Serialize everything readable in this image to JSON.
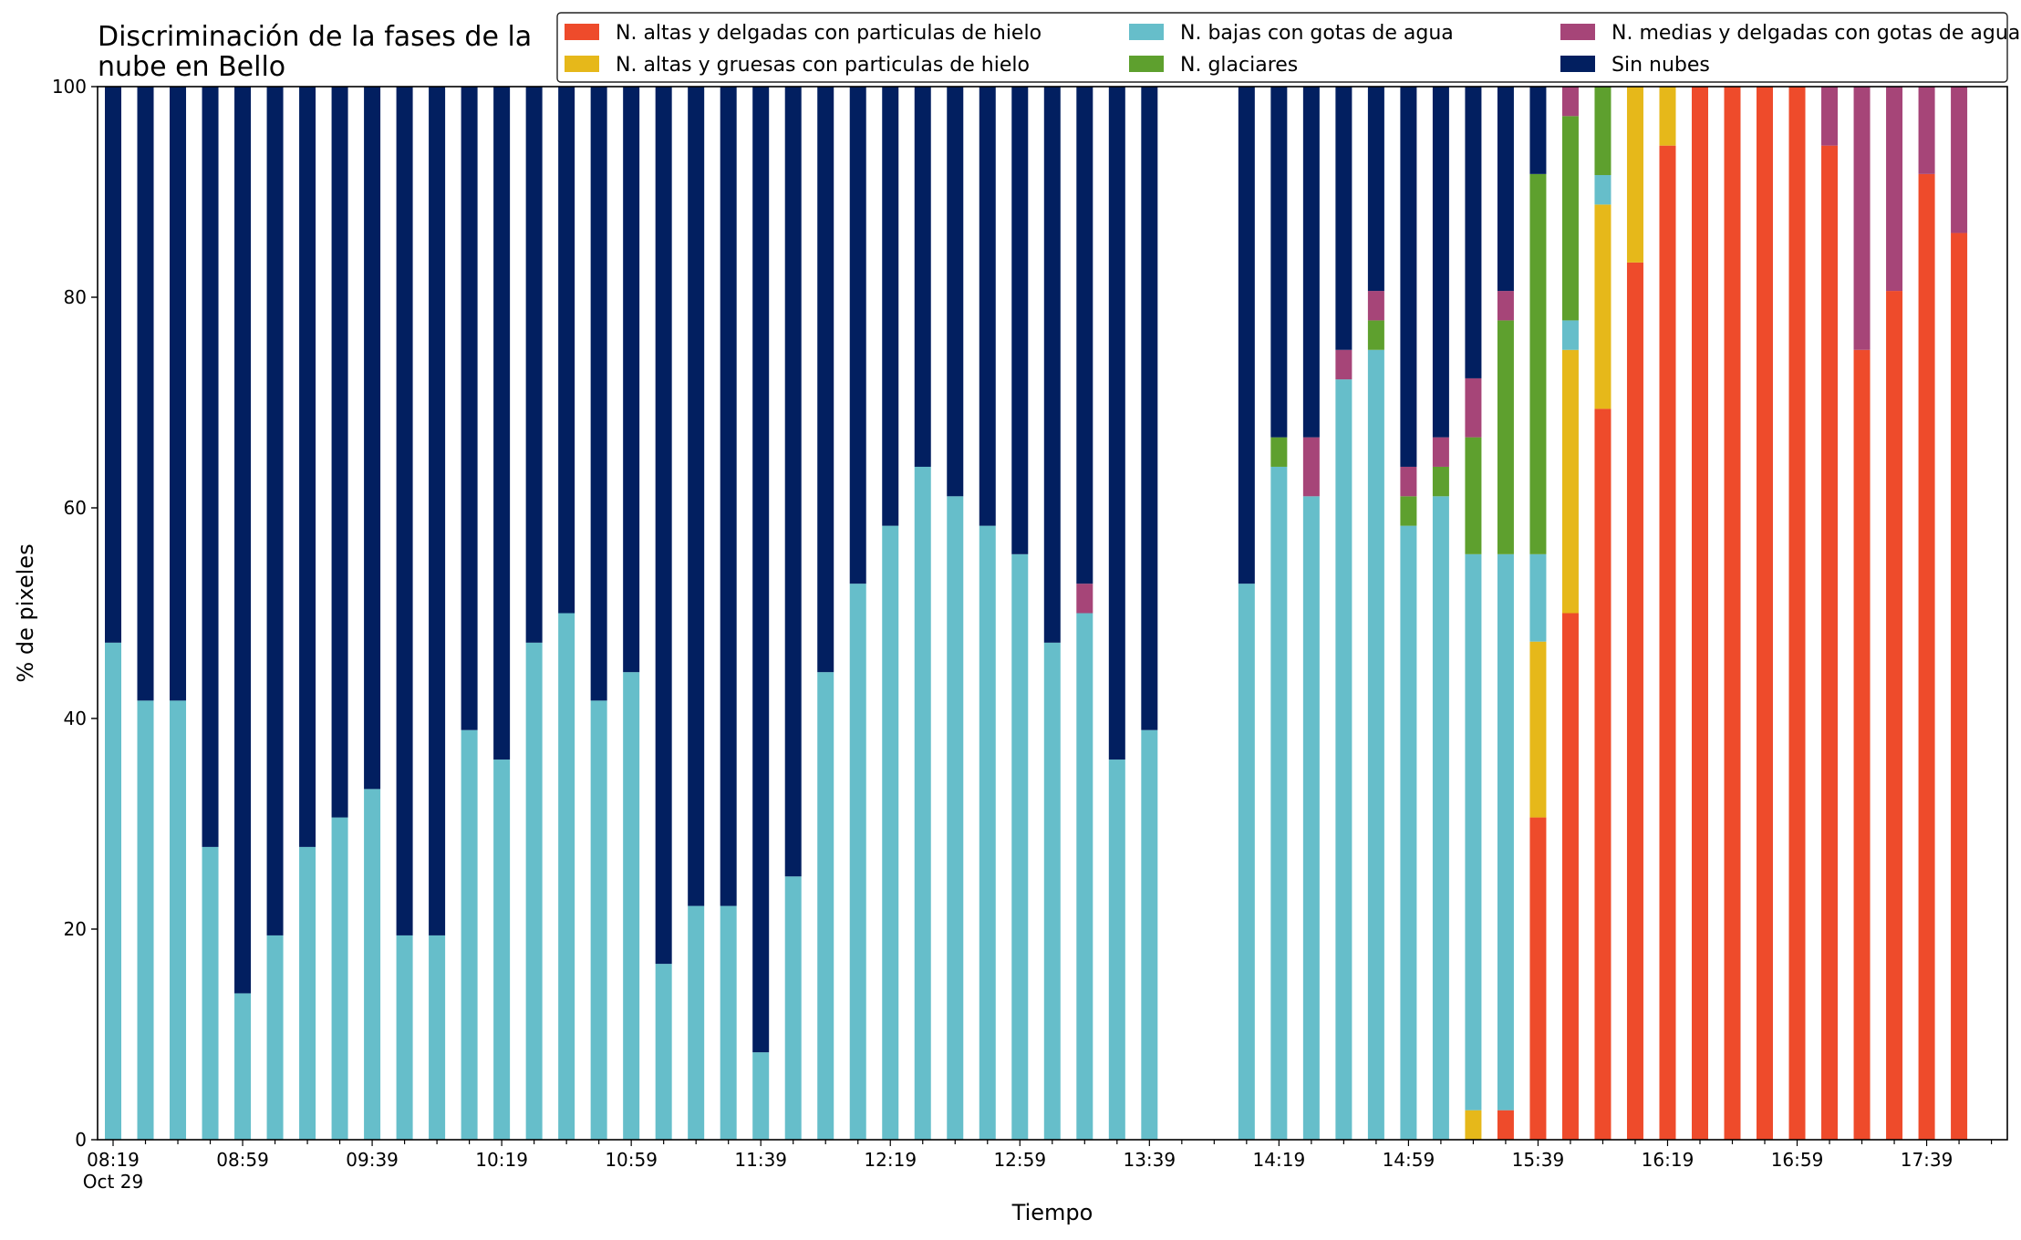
{
  "chart_data": {
    "type": "bar",
    "stacked": true,
    "title": [
      "Discriminación de la fases de la",
      "nube en Bello"
    ],
    "xlabel": "Tiempo",
    "ylabel": "% de pixeles",
    "ylim": [
      0,
      100
    ],
    "yticks": [
      0,
      20,
      40,
      60,
      80,
      100
    ],
    "xtick_labels": [
      {
        "t": "08:19",
        "sub": "Oct 29"
      },
      {
        "t": "08:59"
      },
      {
        "t": "09:39"
      },
      {
        "t": "10:19"
      },
      {
        "t": "10:59"
      },
      {
        "t": "11:39"
      },
      {
        "t": "12:19"
      },
      {
        "t": "12:59"
      },
      {
        "t": "13:39"
      },
      {
        "t": "14:19"
      },
      {
        "t": "14:59"
      },
      {
        "t": "15:39"
      },
      {
        "t": "16:19"
      },
      {
        "t": "16:59"
      },
      {
        "t": "17:39"
      }
    ],
    "grid": false,
    "legend_position": "top-right",
    "legend_columns": 3,
    "series": [
      {
        "name": "N. altas y delgadas con particulas de hielo",
        "color": "#EE4B2B"
      },
      {
        "name": "N. altas y gruesas con particulas de hielo",
        "color": "#E6B81A"
      },
      {
        "name": "N. bajas con gotas de agua",
        "color": "#66BECA"
      },
      {
        "name": "N. glaciares",
        "color": "#5EA02E"
      },
      {
        "name": "N. medias y delgadas con gotas de agua",
        "color": "#A64578"
      },
      {
        "name": "Sin nubes",
        "color": "#021F60"
      }
    ],
    "bars": [
      {
        "time": "08:19",
        "values": [
          0,
          0,
          47.2,
          0,
          0,
          52.8
        ]
      },
      {
        "time": "08:29",
        "values": [
          0,
          0,
          41.7,
          0,
          0,
          58.3
        ]
      },
      {
        "time": "08:39",
        "values": [
          0,
          0,
          41.7,
          0,
          0,
          58.3
        ]
      },
      {
        "time": "08:49",
        "values": [
          0,
          0,
          27.8,
          0,
          0,
          72.2
        ]
      },
      {
        "time": "08:59",
        "values": [
          0,
          0,
          13.9,
          0,
          0,
          86.1
        ]
      },
      {
        "time": "09:09",
        "values": [
          0,
          0,
          19.4,
          0,
          0,
          80.6
        ]
      },
      {
        "time": "09:19",
        "values": [
          0,
          0,
          27.8,
          0,
          0,
          72.2
        ]
      },
      {
        "time": "09:29",
        "values": [
          0,
          0,
          30.6,
          0,
          0,
          69.4
        ]
      },
      {
        "time": "09:39",
        "values": [
          0,
          0,
          33.3,
          0,
          0,
          66.7
        ]
      },
      {
        "time": "09:49",
        "values": [
          0,
          0,
          19.4,
          0,
          0,
          80.6
        ]
      },
      {
        "time": "09:59",
        "values": [
          0,
          0,
          19.4,
          0,
          0,
          80.6
        ]
      },
      {
        "time": "10:09",
        "values": [
          0,
          0,
          38.9,
          0,
          0,
          61.1
        ]
      },
      {
        "time": "10:19",
        "values": [
          0,
          0,
          36.1,
          0,
          0,
          63.9
        ]
      },
      {
        "time": "10:29",
        "values": [
          0,
          0,
          47.2,
          0,
          0,
          52.8
        ]
      },
      {
        "time": "10:39",
        "values": [
          0,
          0,
          50.0,
          0,
          0,
          50.0
        ]
      },
      {
        "time": "10:49",
        "values": [
          0,
          0,
          41.7,
          0,
          0,
          58.3
        ]
      },
      {
        "time": "10:59",
        "values": [
          0,
          0,
          44.4,
          0,
          0,
          55.6
        ]
      },
      {
        "time": "11:09",
        "values": [
          0,
          0,
          16.7,
          0,
          0,
          83.3
        ]
      },
      {
        "time": "11:19",
        "values": [
          0,
          0,
          22.2,
          0,
          0,
          77.8
        ]
      },
      {
        "time": "11:29",
        "values": [
          0,
          0,
          22.2,
          0,
          0,
          77.8
        ]
      },
      {
        "time": "11:39",
        "values": [
          0,
          0,
          8.3,
          0,
          0,
          91.7
        ]
      },
      {
        "time": "11:49",
        "values": [
          0,
          0,
          25.0,
          0,
          0,
          75.0
        ]
      },
      {
        "time": "11:59",
        "values": [
          0,
          0,
          44.4,
          0,
          0,
          55.6
        ]
      },
      {
        "time": "12:09",
        "values": [
          0,
          0,
          52.8,
          0,
          0,
          47.2
        ]
      },
      {
        "time": "12:19",
        "values": [
          0,
          0,
          58.3,
          0,
          0,
          41.7
        ]
      },
      {
        "time": "12:29",
        "values": [
          0,
          0,
          63.9,
          0,
          0,
          36.1
        ]
      },
      {
        "time": "12:39",
        "values": [
          0,
          0,
          61.1,
          0,
          0,
          38.9
        ]
      },
      {
        "time": "12:49",
        "values": [
          0,
          0,
          58.3,
          0,
          0,
          41.7
        ]
      },
      {
        "time": "12:59",
        "values": [
          0,
          0,
          55.6,
          0,
          0,
          44.4
        ]
      },
      {
        "time": "13:09",
        "values": [
          0,
          0,
          47.2,
          0,
          0,
          52.8
        ]
      },
      {
        "time": "13:19",
        "values": [
          0,
          0,
          50.0,
          0,
          2.8,
          47.2
        ]
      },
      {
        "time": "13:29",
        "values": [
          0,
          0,
          36.1,
          0,
          0,
          63.9
        ]
      },
      {
        "time": "13:39",
        "values": [
          0,
          0,
          38.9,
          0,
          0,
          61.1
        ]
      },
      {
        "time": "14:09",
        "values": [
          0,
          0,
          52.8,
          0,
          0,
          47.2
        ]
      },
      {
        "time": "14:19",
        "values": [
          0,
          0,
          63.9,
          2.8,
          0,
          33.3
        ]
      },
      {
        "time": "14:29",
        "values": [
          0,
          0,
          61.1,
          0,
          5.6,
          33.3
        ]
      },
      {
        "time": "14:39",
        "values": [
          0,
          0,
          72.2,
          0,
          2.8,
          25.0
        ]
      },
      {
        "time": "14:49",
        "values": [
          0,
          0,
          75.0,
          2.8,
          2.8,
          19.4
        ]
      },
      {
        "time": "14:59",
        "values": [
          0,
          0,
          58.3,
          2.8,
          2.8,
          36.1
        ]
      },
      {
        "time": "15:09",
        "values": [
          0,
          0,
          61.1,
          2.8,
          2.8,
          33.3
        ]
      },
      {
        "time": "15:19",
        "values": [
          0,
          2.8,
          52.8,
          11.1,
          5.6,
          27.7
        ]
      },
      {
        "time": "15:29",
        "values": [
          2.8,
          0,
          52.8,
          22.2,
          2.8,
          19.4
        ]
      },
      {
        "time": "15:39",
        "values": [
          30.6,
          16.7,
          8.3,
          36.1,
          0,
          8.3
        ]
      },
      {
        "time": "15:49",
        "values": [
          50.0,
          25.0,
          2.8,
          19.4,
          2.8,
          0
        ]
      },
      {
        "time": "15:59",
        "values": [
          69.4,
          19.4,
          2.8,
          8.4,
          0,
          0
        ]
      },
      {
        "time": "16:09",
        "values": [
          83.3,
          16.7,
          0,
          0,
          0,
          0
        ]
      },
      {
        "time": "16:19",
        "values": [
          94.4,
          5.6,
          0,
          0,
          0,
          0
        ]
      },
      {
        "time": "16:29",
        "values": [
          100,
          0,
          0,
          0,
          0,
          0
        ]
      },
      {
        "time": "16:39",
        "values": [
          100,
          0,
          0,
          0,
          0,
          0
        ]
      },
      {
        "time": "16:49",
        "values": [
          100,
          0,
          0,
          0,
          0,
          0
        ]
      },
      {
        "time": "16:59",
        "values": [
          100,
          0,
          0,
          0,
          0,
          0
        ]
      },
      {
        "time": "17:09",
        "values": [
          94.4,
          0,
          0,
          0,
          5.6,
          0
        ]
      },
      {
        "time": "17:19",
        "values": [
          75.0,
          0,
          0,
          0,
          25.0,
          0
        ]
      },
      {
        "time": "17:29",
        "values": [
          80.6,
          0,
          0,
          0,
          19.4,
          0
        ]
      },
      {
        "time": "17:39",
        "values": [
          91.7,
          0,
          0,
          0,
          8.3,
          0
        ]
      },
      {
        "time": "17:49",
        "values": [
          86.1,
          0,
          0,
          0,
          13.9,
          0
        ]
      }
    ]
  }
}
